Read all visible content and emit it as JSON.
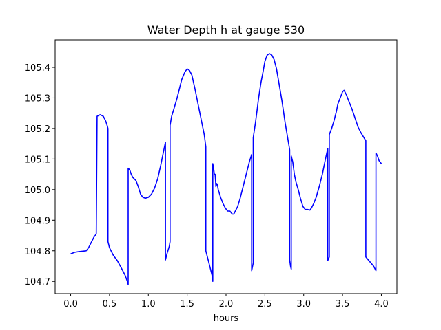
{
  "chart_data": {
    "type": "line",
    "title": "Water Depth h at gauge 530",
    "xlabel": "hours",
    "ylabel": "",
    "xlim": [
      -0.2,
      4.2
    ],
    "ylim": [
      104.66,
      105.49
    ],
    "xticks": [
      0.0,
      0.5,
      1.0,
      1.5,
      2.0,
      2.5,
      3.0,
      3.5,
      4.0
    ],
    "xtick_labels": [
      "0.0",
      "0.5",
      "1.0",
      "1.5",
      "2.0",
      "2.5",
      "3.0",
      "3.5",
      "4.0"
    ],
    "yticks": [
      104.7,
      104.8,
      104.9,
      105.0,
      105.1,
      105.2,
      105.3,
      105.4
    ],
    "ytick_labels": [
      "104.7",
      "104.8",
      "104.9",
      "105.0",
      "105.1",
      "105.2",
      "105.3",
      "105.4"
    ],
    "grid": false,
    "series": [
      {
        "color": "#0000ff",
        "x": [
          0.0,
          0.05,
          0.1,
          0.2,
          0.23,
          0.27,
          0.3,
          0.33,
          0.34,
          0.34,
          0.38,
          0.42,
          0.45,
          0.47,
          0.48,
          0.48,
          0.5,
          0.55,
          0.6,
          0.65,
          0.7,
          0.73,
          0.74,
          0.74,
          0.76,
          0.78,
          0.8,
          0.84,
          0.87,
          0.9,
          0.93,
          0.96,
          1.0,
          1.04,
          1.08,
          1.12,
          1.16,
          1.2,
          1.22,
          1.22,
          1.24,
          1.27,
          1.28,
          1.28,
          1.3,
          1.33,
          1.37,
          1.4,
          1.43,
          1.47,
          1.5,
          1.53,
          1.56,
          1.6,
          1.64,
          1.68,
          1.72,
          1.74,
          1.74,
          1.77,
          1.8,
          1.82,
          1.83,
          1.83,
          1.84,
          1.85,
          1.86,
          1.87,
          1.88,
          1.89,
          1.9,
          1.93,
          1.96,
          1.99,
          2.02,
          2.05,
          2.08,
          2.1,
          2.12,
          2.15,
          2.18,
          2.22,
          2.26,
          2.3,
          2.33,
          2.33,
          2.35,
          2.35,
          2.38,
          2.4,
          2.42,
          2.45,
          2.48,
          2.5,
          2.53,
          2.56,
          2.59,
          2.62,
          2.65,
          2.68,
          2.72,
          2.76,
          2.8,
          2.82,
          2.82,
          2.83,
          2.84,
          2.84,
          2.86,
          2.88,
          2.9,
          2.93,
          2.96,
          2.99,
          3.02,
          3.05,
          3.08,
          3.1,
          3.13,
          3.16,
          3.2,
          3.24,
          3.28,
          3.31,
          3.31,
          3.33,
          3.33,
          3.36,
          3.39,
          3.42,
          3.44,
          3.47,
          3.5,
          3.52,
          3.55,
          3.58,
          3.62,
          3.66,
          3.7,
          3.74,
          3.78,
          3.8,
          3.8,
          3.85,
          3.9,
          3.93,
          3.93,
          3.95,
          3.97,
          4.0
        ],
        "values": [
          104.79,
          104.795,
          104.797,
          104.8,
          104.81,
          104.83,
          104.845,
          104.855,
          105.24,
          105.24,
          105.245,
          105.24,
          105.225,
          105.21,
          105.2,
          104.83,
          104.81,
          104.785,
          104.768,
          104.745,
          104.72,
          104.7,
          104.69,
          105.07,
          105.065,
          105.05,
          105.04,
          105.03,
          105.01,
          104.985,
          104.975,
          104.972,
          104.975,
          104.985,
          105.005,
          105.035,
          105.08,
          105.13,
          105.155,
          104.77,
          104.79,
          104.815,
          104.83,
          105.21,
          105.24,
          105.265,
          105.3,
          105.33,
          105.36,
          105.385,
          105.395,
          105.39,
          105.375,
          105.33,
          105.28,
          105.23,
          105.18,
          105.14,
          104.8,
          104.77,
          104.74,
          104.72,
          104.7,
          105.085,
          105.07,
          105.05,
          105.05,
          105.01,
          105.02,
          105.015,
          105.0,
          104.975,
          104.955,
          104.94,
          104.93,
          104.93,
          104.92,
          104.92,
          104.93,
          104.945,
          104.97,
          105.01,
          105.05,
          105.09,
          105.115,
          104.735,
          104.76,
          105.17,
          105.22,
          105.26,
          105.3,
          105.35,
          105.39,
          105.42,
          105.44,
          105.445,
          105.44,
          105.425,
          105.395,
          105.35,
          105.29,
          105.22,
          105.16,
          105.13,
          104.77,
          104.75,
          104.74,
          105.11,
          105.09,
          105.05,
          105.025,
          105.0,
          104.97,
          104.945,
          104.935,
          104.935,
          104.933,
          104.94,
          104.955,
          104.975,
          105.01,
          105.05,
          105.1,
          105.135,
          104.768,
          104.78,
          105.18,
          105.2,
          105.225,
          105.255,
          105.28,
          105.3,
          105.32,
          105.325,
          105.31,
          105.29,
          105.265,
          105.235,
          105.205,
          105.185,
          105.168,
          105.16,
          104.78,
          104.765,
          104.75,
          104.735,
          105.12,
          105.11,
          105.095,
          105.085
        ]
      }
    ]
  }
}
